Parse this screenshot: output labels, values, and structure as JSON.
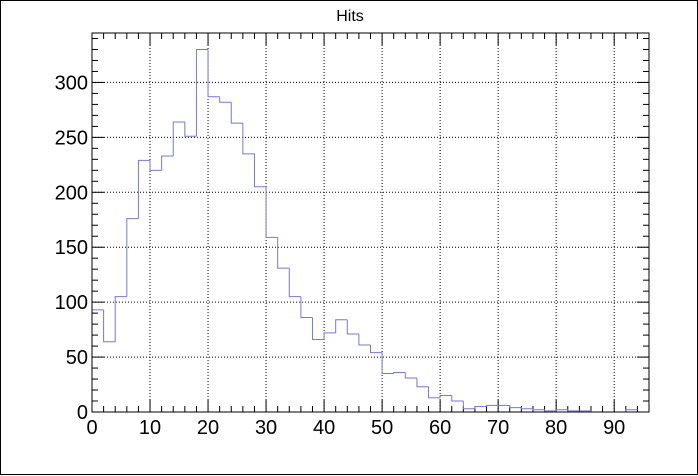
{
  "chart_data": {
    "type": "bar",
    "histogram": true,
    "title": "Hits",
    "xlabel": "",
    "ylabel": "",
    "xlim": [
      0,
      96
    ],
    "ylim": [
      0,
      345
    ],
    "grid": true,
    "x_ticks": [
      0,
      10,
      20,
      30,
      40,
      50,
      60,
      70,
      80,
      90
    ],
    "y_ticks": [
      0,
      50,
      100,
      150,
      200,
      250,
      300
    ],
    "bin_width": 2,
    "bin_edges_start": 0,
    "values": [
      93,
      64,
      105,
      176,
      229,
      220,
      233,
      264,
      251,
      330,
      287,
      282,
      263,
      235,
      205,
      159,
      131,
      105,
      86,
      66,
      72,
      84,
      71,
      61,
      54,
      35,
      36,
      31,
      23,
      13,
      15,
      10,
      3,
      5,
      6,
      6,
      4,
      3,
      2,
      1,
      2,
      1,
      1,
      0,
      0,
      0,
      2
    ],
    "line_color": "#7777dd"
  }
}
